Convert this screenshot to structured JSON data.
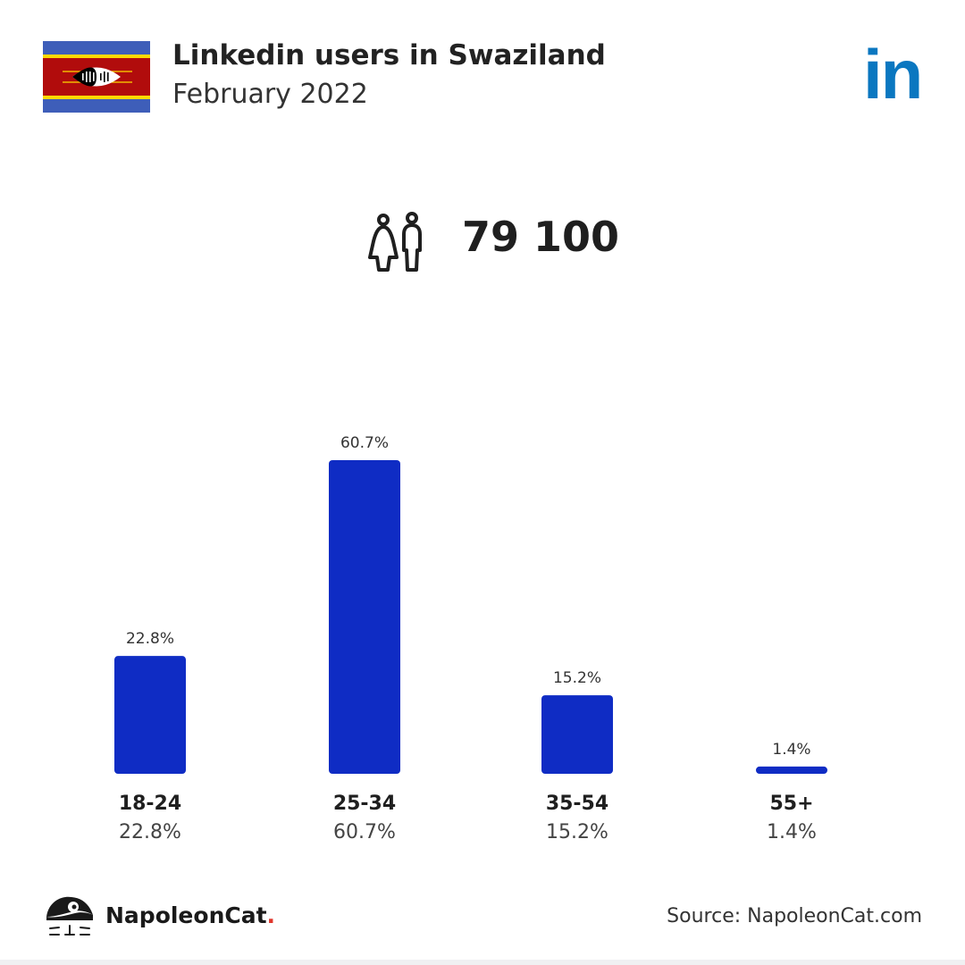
{
  "header": {
    "title": "Linkedin users in Swaziland",
    "subtitle": "February 2022"
  },
  "logo": {
    "text": "in",
    "color": "#0a77c0"
  },
  "total": {
    "value": "79 100",
    "icon": "people-icon"
  },
  "chart_data": {
    "type": "bar",
    "categories": [
      "18-24",
      "25-34",
      "35-54",
      "55+"
    ],
    "values": [
      22.8,
      60.7,
      15.2,
      1.4
    ],
    "value_labels": [
      "22.8%",
      "60.7%",
      "15.2%",
      "1.4%"
    ],
    "ylim": [
      0,
      60.7
    ],
    "grid": false,
    "bar_color": "#0f2cc4"
  },
  "footer": {
    "brand": "NapoleonCat",
    "brand_dot": ".",
    "source": "Source: NapoleonCat.com"
  },
  "colors": {
    "flag_blue": "#3e5eb9",
    "flag_yellow": "#ffd900",
    "flag_red": "#b10c0c"
  }
}
